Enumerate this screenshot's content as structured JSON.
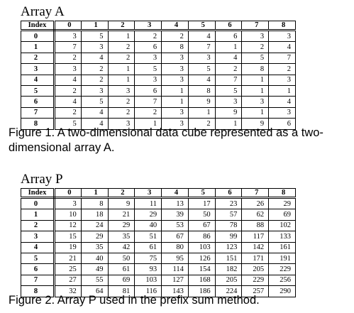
{
  "array_a": {
    "title": "Array A",
    "index_header": "Index",
    "columns": [
      "0",
      "1",
      "2",
      "3",
      "4",
      "5",
      "6",
      "7",
      "8"
    ],
    "rows": [
      {
        "index": "0",
        "values": [
          "3",
          "5",
          "1",
          "2",
          "2",
          "4",
          "6",
          "3",
          "3"
        ]
      },
      {
        "index": "1",
        "values": [
          "7",
          "3",
          "2",
          "6",
          "8",
          "7",
          "1",
          "2",
          "4"
        ]
      },
      {
        "index": "2",
        "values": [
          "2",
          "4",
          "2",
          "3",
          "3",
          "3",
          "4",
          "5",
          "7"
        ]
      },
      {
        "index": "3",
        "values": [
          "3",
          "2",
          "1",
          "5",
          "3",
          "5",
          "2",
          "8",
          "2"
        ]
      },
      {
        "index": "4",
        "values": [
          "4",
          "2",
          "1",
          "3",
          "3",
          "4",
          "7",
          "1",
          "3"
        ]
      },
      {
        "index": "5",
        "values": [
          "2",
          "3",
          "3",
          "6",
          "1",
          "8",
          "5",
          "1",
          "1"
        ]
      },
      {
        "index": "6",
        "values": [
          "4",
          "5",
          "2",
          "7",
          "1",
          "9",
          "3",
          "3",
          "4"
        ]
      },
      {
        "index": "7",
        "values": [
          "2",
          "4",
          "2",
          "2",
          "3",
          "1",
          "9",
          "1",
          "3"
        ]
      },
      {
        "index": "8",
        "values": [
          "5",
          "4",
          "3",
          "1",
          "3",
          "2",
          "1",
          "9",
          "6"
        ]
      }
    ],
    "caption": "Figure 1.  A two-dimensional data cube represented as a two-dimensional array A."
  },
  "array_p": {
    "title": "Array P",
    "index_header": "Index",
    "columns": [
      "0",
      "1",
      "2",
      "3",
      "4",
      "5",
      "6",
      "7",
      "8"
    ],
    "rows": [
      {
        "index": "0",
        "values": [
          "3",
          "8",
          "9",
          "11",
          "13",
          "17",
          "23",
          "26",
          "29"
        ]
      },
      {
        "index": "1",
        "values": [
          "10",
          "18",
          "21",
          "29",
          "39",
          "50",
          "57",
          "62",
          "69"
        ]
      },
      {
        "index": "2",
        "values": [
          "12",
          "24",
          "29",
          "40",
          "53",
          "67",
          "78",
          "88",
          "102"
        ]
      },
      {
        "index": "3",
        "values": [
          "15",
          "29",
          "35",
          "51",
          "67",
          "86",
          "99",
          "117",
          "133"
        ]
      },
      {
        "index": "4",
        "values": [
          "19",
          "35",
          "42",
          "61",
          "80",
          "103",
          "123",
          "142",
          "161"
        ]
      },
      {
        "index": "5",
        "values": [
          "21",
          "40",
          "50",
          "75",
          "95",
          "126",
          "151",
          "171",
          "191"
        ]
      },
      {
        "index": "6",
        "values": [
          "25",
          "49",
          "61",
          "93",
          "114",
          "154",
          "182",
          "205",
          "229"
        ]
      },
      {
        "index": "7",
        "values": [
          "27",
          "55",
          "69",
          "103",
          "127",
          "168",
          "205",
          "229",
          "256"
        ]
      },
      {
        "index": "8",
        "values": [
          "32",
          "64",
          "81",
          "116",
          "143",
          "186",
          "224",
          "257",
          "290"
        ]
      }
    ],
    "caption": "Figure 2.  Array P used in the prefix sum method."
  }
}
